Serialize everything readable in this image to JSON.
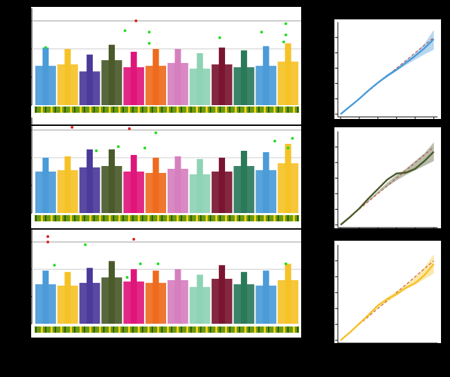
{
  "chart_data": [
    {
      "type": "manhattan",
      "categories": [
        null,
        null,
        null,
        null,
        null,
        null,
        null,
        null,
        null,
        null,
        null,
        null
      ],
      "colors": [
        "#4a9bd8",
        "#f5c228",
        "#4b3a9a",
        "#4a5a2a",
        "#e0157a",
        "#ee6b1e",
        "#d67fbf",
        "#8dd3b4",
        "#7a1530",
        "#2a7a5a",
        "#4a9bd8",
        "#f5c228"
      ],
      "values": [
        2.8,
        2.9,
        2.4,
        3.2,
        2.7,
        2.8,
        3.0,
        2.6,
        2.9,
        2.7,
        2.8,
        3.1
      ],
      "peaks": [
        4.1,
        4.0,
        3.6,
        4.3,
        3.8,
        4.0,
        4.0,
        3.7,
        4.1,
        3.9,
        4.2,
        4.4
      ],
      "thresholds": [
        6,
        4
      ],
      "xlim": [
        0,
        12
      ],
      "ylim": [
        0,
        6.5
      ],
      "yticks": [
        0,
        2,
        4,
        6
      ],
      "hits": {
        "color": "#22dd22",
        "x": [
          4.1,
          5.2,
          11.4,
          11.4,
          11.3,
          10.3,
          8.4,
          5.2,
          0.5
        ],
        "y": [
          5.3,
          5.2,
          5.8,
          5.0,
          4.5,
          5.2,
          4.8,
          4.4,
          4.1
        ]
      },
      "top": {
        "color": "#dd2222",
        "x": [
          4.6
        ],
        "y": [
          6.0
        ]
      }
    },
    {
      "type": "manhattan",
      "categories": [
        null,
        null,
        null,
        null,
        null,
        null,
        null,
        null,
        null,
        null,
        null,
        null
      ],
      "colors": [
        "#4a9bd8",
        "#f5c228",
        "#4b3a9a",
        "#4a5a2a",
        "#e0157a",
        "#ee6b1e",
        "#d67fbf",
        "#8dd3b4",
        "#7a1530",
        "#2a7a5a",
        "#4a9bd8",
        "#f5c228"
      ],
      "values": [
        3.0,
        3.1,
        3.3,
        3.4,
        3.0,
        2.9,
        3.2,
        2.8,
        3.0,
        3.4,
        3.1,
        3.6
      ],
      "peaks": [
        4.0,
        4.1,
        4.6,
        4.6,
        4.2,
        4.0,
        4.1,
        3.9,
        4.0,
        4.5,
        4.4,
        5.0
      ],
      "thresholds": [
        6,
        4
      ],
      "xlim": [
        0,
        12
      ],
      "ylim": [
        0,
        6.5
      ],
      "yticks": [
        0,
        2,
        4,
        6
      ],
      "hits": {
        "color": "#22dd22",
        "x": [
          2.8,
          5.5,
          11.7,
          11.5,
          10.9,
          5.0,
          3.8
        ],
        "y": [
          4.5,
          5.8,
          5.4,
          4.7,
          5.2,
          4.7,
          4.8
        ]
      },
      "top": {
        "color": "#dd2222",
        "x": [
          1.7,
          4.3
        ],
        "y": [
          6.2,
          6.1
        ]
      }
    },
    {
      "type": "manhattan",
      "categories": [
        null,
        null,
        null,
        null,
        null,
        null,
        null,
        null,
        null,
        null,
        null,
        null
      ],
      "colors": [
        "#4a9bd8",
        "#f5c228",
        "#4b3a9a",
        "#4a5a2a",
        "#e0157a",
        "#ee6b1e",
        "#d67fbf",
        "#8dd3b4",
        "#7a1530",
        "#2a7a5a",
        "#4a9bd8",
        "#f5c228"
      ],
      "values": [
        2.9,
        2.8,
        3.0,
        3.4,
        3.1,
        3.0,
        3.2,
        2.7,
        3.3,
        2.9,
        2.8,
        3.2
      ],
      "peaks": [
        3.9,
        3.8,
        4.1,
        4.6,
        4.0,
        3.9,
        4.0,
        3.6,
        4.3,
        3.8,
        3.9,
        4.4
      ],
      "thresholds": [
        6,
        4
      ],
      "xlim": [
        0,
        12
      ],
      "ylim": [
        0,
        6.5
      ],
      "yticks": [
        0,
        2,
        4,
        6
      ],
      "hits": {
        "color": "#22dd22",
        "x": [
          2.3,
          4.2,
          4.8,
          11.4,
          5.6,
          0.9
        ],
        "y": [
          5.8,
          3.4,
          4.4,
          4.4,
          4.4,
          4.3
        ]
      },
      "top": {
        "color": "#dd2222",
        "x": [
          0.6,
          0.6,
          4.5
        ],
        "y": [
          6.4,
          6.0,
          6.2
        ]
      }
    },
    {
      "type": "qq",
      "color": "#4a9bd8",
      "x": [
        0,
        0.5,
        1,
        1.5,
        2,
        2.5,
        3,
        3.5,
        4,
        4.5,
        5
      ],
      "values": [
        0,
        0.5,
        1,
        1.55,
        2.05,
        2.5,
        2.9,
        3.35,
        3.8,
        4.3,
        4.9
      ],
      "lower": [
        0,
        0.5,
        1,
        1.5,
        2,
        2.4,
        2.8,
        3.2,
        3.55,
        3.9,
        4.2
      ],
      "upper": [
        0,
        0.5,
        1,
        1.6,
        2.1,
        2.6,
        3.0,
        3.5,
        4,
        4.6,
        5.5
      ],
      "xlim": [
        0,
        5.2
      ],
      "ylim": [
        0,
        6
      ],
      "xticks": [
        0,
        1,
        2,
        3,
        4,
        5
      ],
      "yticks": [
        0,
        1,
        2,
        3,
        4,
        5
      ]
    },
    {
      "type": "qq",
      "color": "#4a5a2a",
      "x": [
        0,
        0.5,
        1,
        1.5,
        2,
        2.5,
        3,
        3.5,
        4,
        4.5,
        5
      ],
      "values": [
        0,
        0.5,
        1.05,
        1.7,
        2.3,
        2.9,
        3.3,
        3.35,
        3.6,
        4.1,
        4.7
      ],
      "lower": [
        0,
        0.5,
        1,
        1.5,
        2,
        2.45,
        2.85,
        3.2,
        3.5,
        3.8,
        4.1
      ],
      "upper": [
        0,
        0.5,
        1,
        1.6,
        2.15,
        2.7,
        3.2,
        3.6,
        4.1,
        4.6,
        5.3
      ],
      "xlim": [
        0,
        5.2
      ],
      "ylim": [
        0,
        6
      ],
      "xticks": [
        0,
        1,
        2,
        3,
        4,
        5
      ],
      "yticks": [
        0,
        1,
        2,
        3,
        4,
        5
      ]
    },
    {
      "type": "qq",
      "color": "#f5c228",
      "x": [
        0,
        0.5,
        1,
        1.5,
        2,
        2.5,
        3,
        3.5,
        4,
        4.5,
        5
      ],
      "values": [
        0,
        0.5,
        1.05,
        1.6,
        2.2,
        2.6,
        2.9,
        3.3,
        3.6,
        4.1,
        4.8
      ],
      "lower": [
        0,
        0.5,
        1,
        1.5,
        2,
        2.4,
        2.8,
        3.2,
        3.5,
        3.85,
        4.2
      ],
      "upper": [
        0,
        0.5,
        1,
        1.6,
        2.2,
        2.7,
        3.1,
        3.5,
        4,
        4.6,
        5.4
      ],
      "xlim": [
        0,
        5.2
      ],
      "ylim": [
        0,
        6
      ],
      "xticks": [
        0,
        1,
        2,
        3,
        4,
        5
      ],
      "yticks": [
        0,
        1,
        2,
        3,
        4,
        5
      ]
    }
  ]
}
